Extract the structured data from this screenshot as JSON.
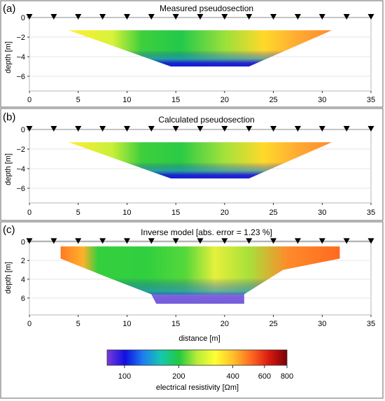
{
  "panels": [
    {
      "tag": "(a)",
      "title": "Measured pseudosection",
      "ylabel": "depth [m]",
      "ylim": [
        0,
        -7.5
      ],
      "yticks": [
        "0",
        "−2",
        "−4",
        "−6"
      ],
      "ytick_values": [
        0,
        -2,
        -4,
        -6
      ],
      "xticks": [
        "0",
        "5",
        "10",
        "15",
        "20",
        "25",
        "30",
        "35"
      ],
      "xtick_values": [
        0,
        5,
        10,
        15,
        20,
        25,
        30,
        35
      ],
      "electrodes_x": [
        0,
        2.5,
        5,
        7.5,
        10,
        12.5,
        15,
        17.5,
        20,
        22.5,
        25,
        27.5,
        30,
        32.5,
        35
      ],
      "section_polygon": [
        [
          4,
          -1.3
        ],
        [
          31,
          -1.3
        ],
        [
          22.5,
          -5
        ],
        [
          14.5,
          -5
        ]
      ],
      "color_regions": [
        {
          "x": 4,
          "color": "#ffee33"
        },
        {
          "x": 8.5,
          "color": "#d8f23a"
        },
        {
          "x": 11.5,
          "color": "#3ecf3c"
        },
        {
          "x": 15.5,
          "color": "#22c94a"
        },
        {
          "x": 20,
          "color": "#9ae03b"
        },
        {
          "x": 24,
          "color": "#ffd92a"
        },
        {
          "x": 27.5,
          "color": "#ffaa33"
        },
        {
          "x": 31,
          "color": "#ff8a2a"
        }
      ],
      "deep_color": "#1818d8"
    },
    {
      "tag": "(b)",
      "title": "Calculated pseudosection",
      "ylabel": "depth [m]",
      "ylim": [
        0,
        -7.5
      ],
      "yticks": [
        "0",
        "−2",
        "−4",
        "−6"
      ],
      "ytick_values": [
        0,
        -2,
        -4,
        -6
      ],
      "xticks": [
        "0",
        "5",
        "10",
        "15",
        "20",
        "25",
        "30",
        "35"
      ],
      "xtick_values": [
        0,
        5,
        10,
        15,
        20,
        25,
        30,
        35
      ],
      "electrodes_x": [
        0,
        2.5,
        5,
        7.5,
        10,
        12.5,
        15,
        17.5,
        20,
        22.5,
        25,
        27.5,
        30,
        32.5,
        35
      ],
      "section_polygon": [
        [
          4,
          -1.3
        ],
        [
          31,
          -1.3
        ],
        [
          22.5,
          -5
        ],
        [
          14.5,
          -5
        ]
      ],
      "color_regions": [
        {
          "x": 4,
          "color": "#ffee33"
        },
        {
          "x": 8.5,
          "color": "#c8ef3a"
        },
        {
          "x": 11.5,
          "color": "#3ecf3c"
        },
        {
          "x": 15.5,
          "color": "#2acb45"
        },
        {
          "x": 20,
          "color": "#a4e23b"
        },
        {
          "x": 24,
          "color": "#ffd92a"
        },
        {
          "x": 27.5,
          "color": "#ffaa33"
        },
        {
          "x": 31,
          "color": "#ff8a2a"
        }
      ],
      "deep_color": "#1a1ad8"
    },
    {
      "tag": "(c)",
      "title": "Inverse model [abs. error = 1.23 %]",
      "ylabel": "depth [m]",
      "ylim": [
        -0.1,
        7.8
      ],
      "yticks": [
        "0",
        "2",
        "4",
        "6"
      ],
      "ytick_values": [
        0,
        2,
        4,
        6
      ],
      "xticks": [
        "0",
        "5",
        "10",
        "15",
        "20",
        "25",
        "30",
        "35"
      ],
      "xtick_values": [
        0,
        5,
        10,
        15,
        20,
        25,
        30,
        35
      ],
      "xlabel": "distance [m]",
      "electrodes_x": [
        0,
        2.5,
        5,
        7.5,
        10,
        12.5,
        15,
        17.5,
        20,
        22.5,
        25,
        27.5,
        30,
        32.5,
        35
      ],
      "section_polygon": [
        [
          3.2,
          0.5
        ],
        [
          31.8,
          0.5
        ],
        [
          31.8,
          1.8
        ],
        [
          26,
          3
        ],
        [
          22,
          5.6
        ],
        [
          22,
          6.6
        ],
        [
          13,
          6.6
        ],
        [
          12.5,
          5.6
        ],
        [
          8,
          3.8
        ],
        [
          3.2,
          1.8
        ]
      ],
      "color_regions": [
        {
          "x": 3.2,
          "color": "#ff7a24"
        },
        {
          "x": 5.5,
          "color": "#ffb12a"
        },
        {
          "x": 7,
          "color": "#35cf3e"
        },
        {
          "x": 12,
          "color": "#30cf3f"
        },
        {
          "x": 16,
          "color": "#55d83a"
        },
        {
          "x": 19,
          "color": "#e6f03c"
        },
        {
          "x": 22.5,
          "color": "#a8e03a"
        },
        {
          "x": 26.5,
          "color": "#ff8a2a"
        },
        {
          "x": 31.8,
          "color": "#ff6a20"
        }
      ],
      "deep_color": "#1414d0",
      "bottom_color": "#8a6adf"
    }
  ],
  "colorbar": {
    "label": "electrical resistivity [Ωm]",
    "tick_labels": [
      "100",
      "200",
      "400",
      "600",
      "800"
    ],
    "tick_values": [
      100,
      200,
      400,
      600,
      800
    ],
    "range": [
      80,
      800
    ],
    "scale": "log",
    "colors": [
      "#7a3ad8",
      "#1010e0",
      "#1e7ef0",
      "#16c8b0",
      "#22c840",
      "#b8ec38",
      "#ffff33",
      "#ffc02a",
      "#ff6a20",
      "#d81a10",
      "#7a0008"
    ]
  }
}
